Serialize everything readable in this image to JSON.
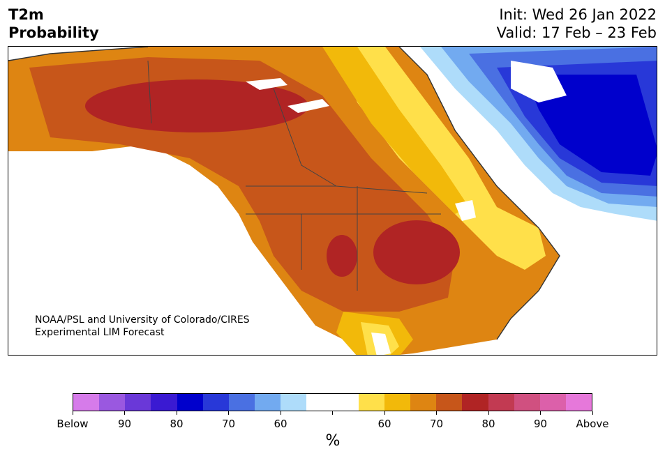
{
  "header": {
    "title_line1": "T2m",
    "title_line2": "Probability",
    "init": "Init: Wed 26 Jan 2022",
    "valid": "Valid: 17 Feb – 23 Feb"
  },
  "map": {
    "credit_line1": "NOAA/PSL and University of Colorado/CIRES",
    "credit_line2": "Experimental LIM Forecast",
    "region": "North America",
    "dominant_signal_west_central": "above normal probability 70-80%",
    "dominant_signal_northeast_canada": "below normal probability 70-80%"
  },
  "colorbar": {
    "colors": [
      "#d67bea",
      "#9a58e0",
      "#6a38d8",
      "#3a1ad2",
      "#0000cc",
      "#2838d8",
      "#4a70e2",
      "#72aaf0",
      "#aedcfa",
      "#ffffff",
      "#ffffff",
      "#ffe04a",
      "#f2b90a",
      "#de8512",
      "#c7561a",
      "#b02424",
      "#c23a52",
      "#d05080",
      "#dc60aa",
      "#e678da"
    ],
    "ticks": [
      {
        "label": "Below"
      },
      {
        "label": "90"
      },
      {
        "label": "80"
      },
      {
        "label": "70"
      },
      {
        "label": "60"
      },
      {
        "label": ""
      },
      {
        "label": "60"
      },
      {
        "label": "70"
      },
      {
        "label": "80"
      },
      {
        "label": "90"
      },
      {
        "label": "Above"
      }
    ],
    "unit": "%"
  }
}
